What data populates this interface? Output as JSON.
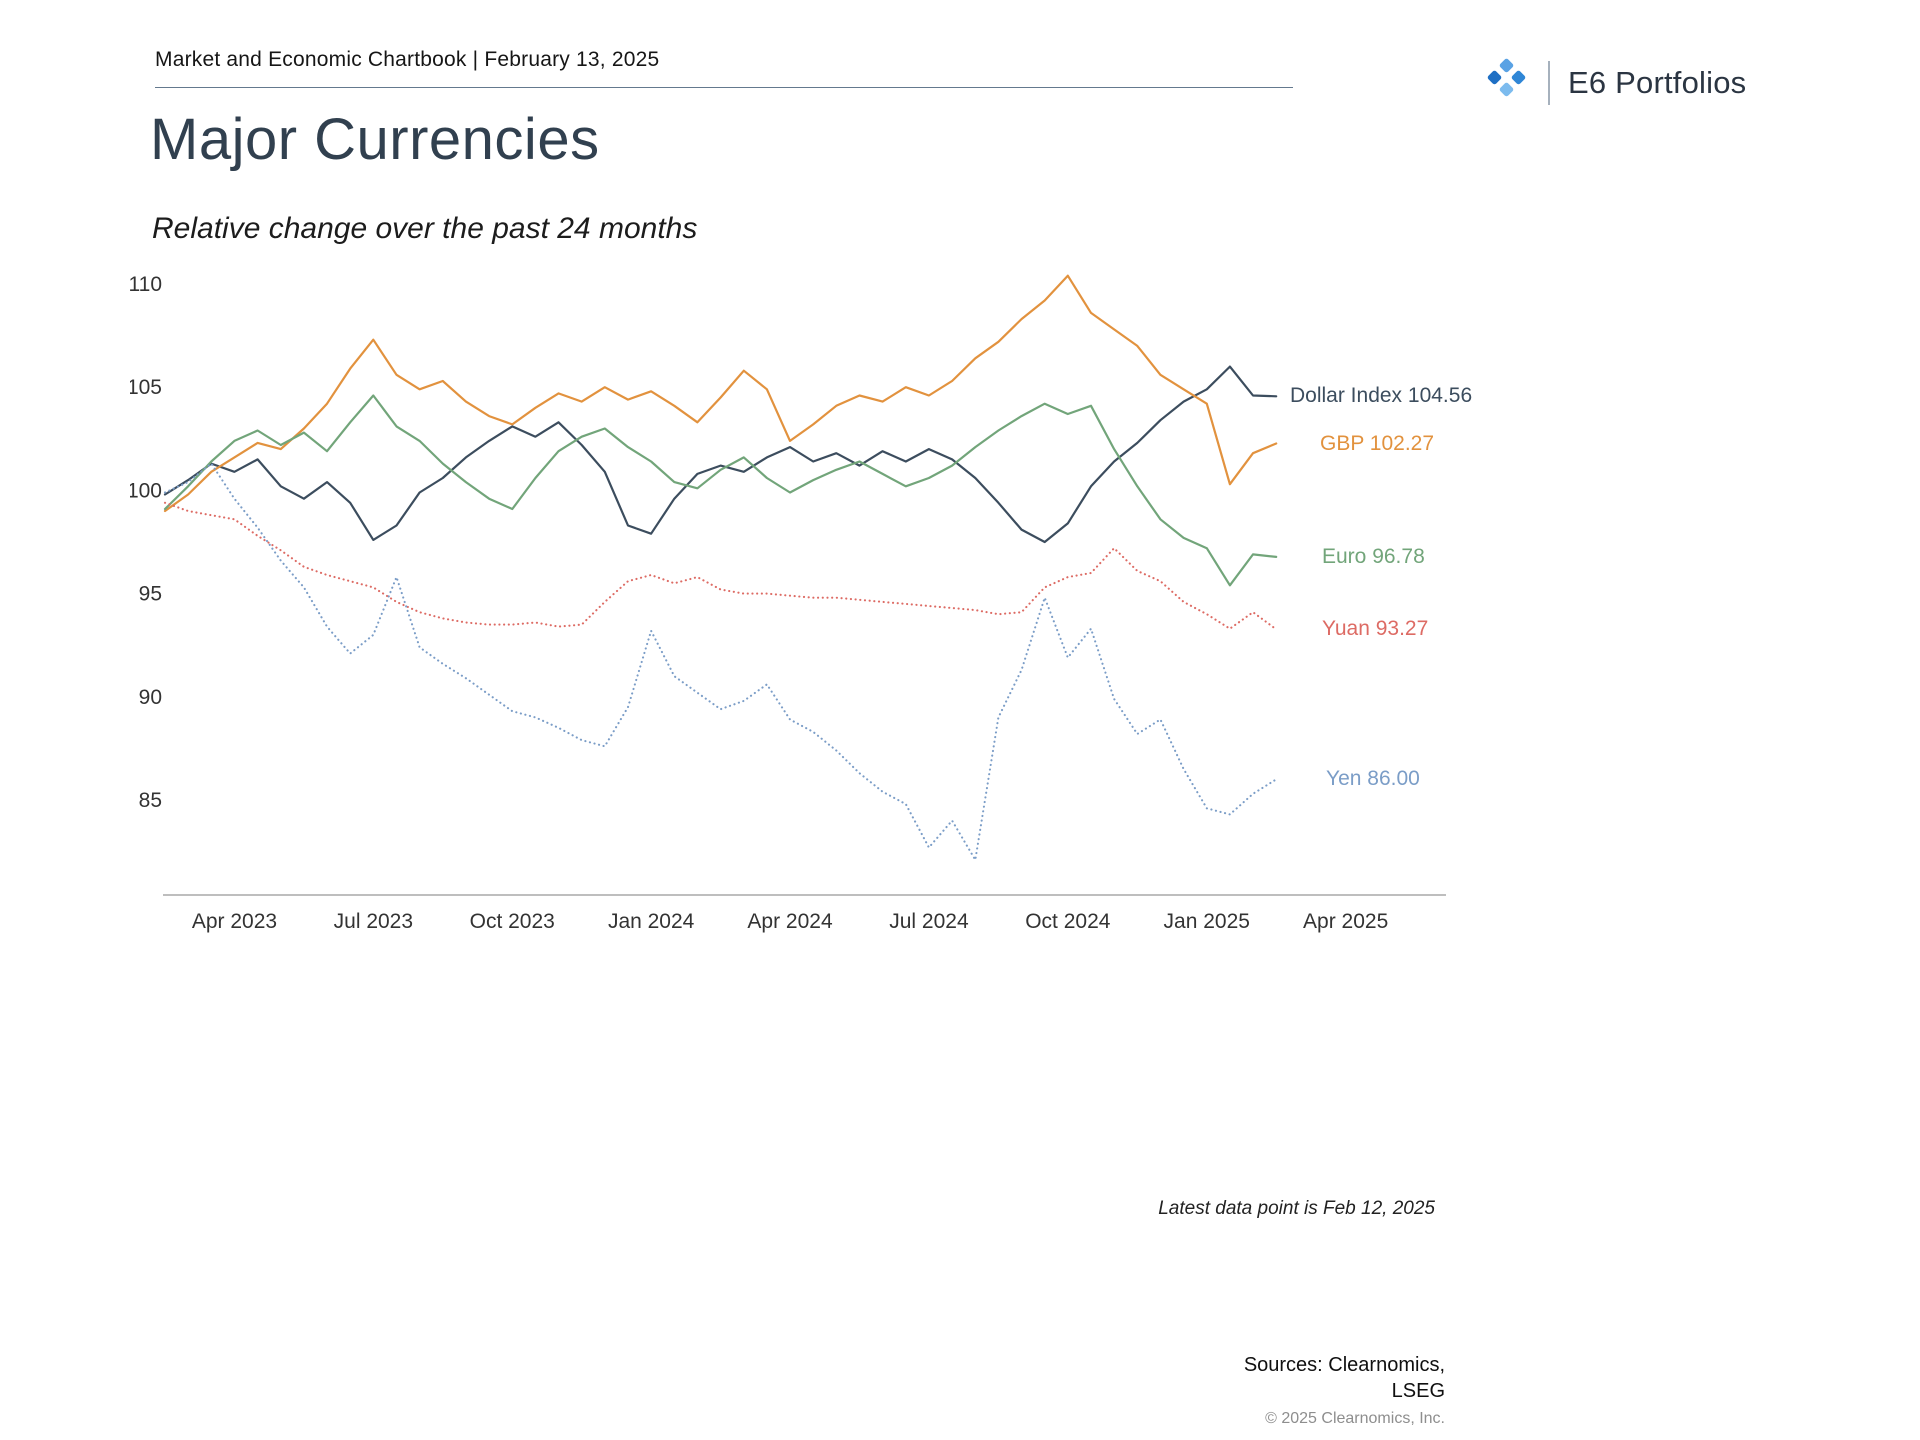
{
  "header": {
    "chartbook_title": "Market and Economic Chartbook | February 13, 2025",
    "brand_name": "E6 Portfolios"
  },
  "footnote": "Latest data point is Feb 12, 2025",
  "sources_line1": "Sources: Clearnomics,",
  "sources_line2": "LSEG",
  "copyright": "© 2025 Clearnomics, Inc.",
  "icons": {
    "brand_logo": "e6-diamond-dots-logo"
  },
  "chart_data": {
    "type": "line",
    "title": "Major Currencies",
    "subtitle": "Relative change over the past 24 months",
    "xlabel": "",
    "ylabel": "",
    "x_unit": "months since Feb 2023",
    "xlim": [
      0,
      27.6
    ],
    "ylim": [
      80.4,
      111.6
    ],
    "grid": false,
    "legend_position": "right-of-line-ends",
    "y_ticks": [
      85,
      90,
      95,
      100,
      105,
      110
    ],
    "x_ticks": [
      {
        "t": 1.5,
        "label": "Apr 2023"
      },
      {
        "t": 4.5,
        "label": "Jul 2023"
      },
      {
        "t": 7.5,
        "label": "Oct 2023"
      },
      {
        "t": 10.5,
        "label": "Jan 2024"
      },
      {
        "t": 13.5,
        "label": "Apr 2024"
      },
      {
        "t": 16.5,
        "label": "Jul 2024"
      },
      {
        "t": 19.5,
        "label": "Oct 2024"
      },
      {
        "t": 22.5,
        "label": "Jan 2025"
      },
      {
        "t": 25.5,
        "label": "Apr 2025"
      }
    ],
    "t_start": 0,
    "t_step": 0.5,
    "series": [
      {
        "name": "Dollar Index",
        "label": "Dollar Index 104.56",
        "last_value": 104.56,
        "color": "#3c4d5e",
        "style": "solid",
        "values": [
          99.8,
          100.5,
          101.3,
          100.9,
          101.5,
          100.2,
          99.6,
          100.4,
          99.4,
          97.6,
          98.3,
          99.9,
          100.6,
          101.6,
          102.4,
          103.1,
          102.6,
          103.3,
          102.2,
          100.9,
          98.3,
          97.9,
          99.6,
          100.8,
          101.2,
          100.9,
          101.6,
          102.1,
          101.4,
          101.8,
          101.2,
          101.9,
          101.4,
          102.0,
          101.5,
          100.6,
          99.4,
          98.1,
          97.5,
          98.4,
          100.2,
          101.4,
          102.3,
          103.4,
          104.3,
          104.9,
          106.0,
          104.6,
          104.56
        ]
      },
      {
        "name": "GBP",
        "label": "GBP 102.27",
        "last_value": 102.27,
        "color": "#e2923e",
        "style": "solid",
        "values": [
          99.0,
          99.8,
          100.9,
          101.6,
          102.3,
          102.0,
          103.0,
          104.2,
          105.9,
          107.3,
          105.6,
          104.9,
          105.3,
          104.3,
          103.6,
          103.2,
          104.0,
          104.7,
          104.3,
          105.0,
          104.4,
          104.8,
          104.1,
          103.3,
          104.5,
          105.8,
          104.9,
          102.4,
          103.2,
          104.1,
          104.6,
          104.3,
          105.0,
          104.6,
          105.3,
          106.4,
          107.2,
          108.3,
          109.2,
          110.4,
          108.6,
          107.8,
          107.0,
          105.6,
          104.9,
          104.2,
          100.3,
          101.8,
          102.27
        ]
      },
      {
        "name": "Euro",
        "label": "Euro 96.78",
        "last_value": 96.78,
        "color": "#72a57a",
        "style": "solid",
        "values": [
          99.1,
          100.2,
          101.4,
          102.4,
          102.9,
          102.2,
          102.8,
          101.9,
          103.3,
          104.6,
          103.1,
          102.4,
          101.3,
          100.4,
          99.6,
          99.1,
          100.6,
          101.9,
          102.6,
          103.0,
          102.1,
          101.4,
          100.4,
          100.1,
          101.0,
          101.6,
          100.6,
          99.9,
          100.5,
          101.0,
          101.4,
          100.8,
          100.2,
          100.6,
          101.2,
          102.1,
          102.9,
          103.6,
          104.2,
          103.7,
          104.1,
          102.0,
          100.2,
          98.6,
          97.7,
          97.2,
          95.4,
          96.9,
          96.78
        ]
      },
      {
        "name": "Yuan",
        "label": "Yuan 93.27",
        "last_value": 93.27,
        "color": "#dd6b64",
        "style": "dotted",
        "values": [
          99.4,
          99.0,
          98.8,
          98.6,
          97.8,
          97.1,
          96.3,
          95.9,
          95.6,
          95.3,
          94.6,
          94.1,
          93.8,
          93.6,
          93.5,
          93.5,
          93.6,
          93.4,
          93.5,
          94.6,
          95.6,
          95.9,
          95.5,
          95.8,
          95.2,
          95.0,
          95.0,
          94.9,
          94.8,
          94.8,
          94.7,
          94.6,
          94.5,
          94.4,
          94.3,
          94.2,
          94.0,
          94.1,
          95.3,
          95.8,
          96.0,
          97.2,
          96.1,
          95.6,
          94.6,
          94.0,
          93.3,
          94.1,
          93.27
        ]
      },
      {
        "name": "Yen",
        "label": "Yen 86.00",
        "last_value": 86.0,
        "color": "#7b9dc7",
        "style": "dotted",
        "values": [
          99.9,
          100.4,
          101.3,
          99.6,
          98.2,
          96.6,
          95.3,
          93.4,
          92.1,
          93.0,
          95.8,
          92.4,
          91.6,
          90.9,
          90.1,
          89.3,
          89.0,
          88.5,
          87.9,
          87.6,
          89.5,
          93.2,
          91.0,
          90.2,
          89.4,
          89.8,
          90.6,
          88.9,
          88.3,
          87.4,
          86.3,
          85.4,
          84.8,
          82.7,
          84.0,
          82.1,
          89.0,
          91.3,
          94.8,
          91.9,
          93.3,
          89.9,
          88.2,
          88.9,
          86.5,
          84.6,
          84.3,
          85.3,
          86.0
        ]
      }
    ]
  }
}
